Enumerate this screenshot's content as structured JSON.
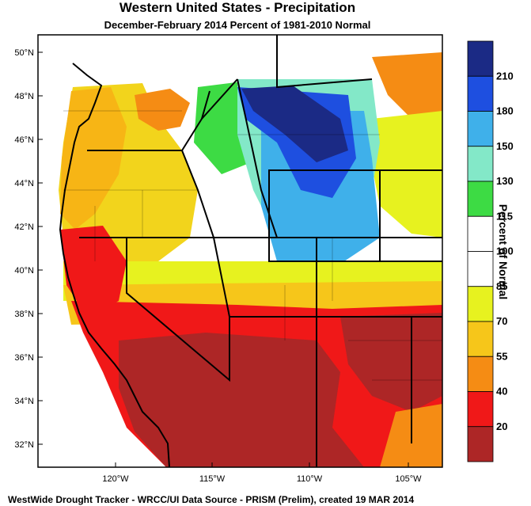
{
  "header": {
    "title": "Western United States - Precipitation",
    "subtitle": "December-February 2014  Percent of 1981-2010 Normal"
  },
  "footer": {
    "credit": "WestWide Drought Tracker - WRCC/UI  Data Source - PRISM (Prelim), created 19 MAR 2014"
  },
  "map": {
    "lat_labels": [
      "50°N",
      "48°N",
      "46°N",
      "44°N",
      "42°N",
      "40°N",
      "38°N",
      "36°N",
      "34°N",
      "32°N"
    ],
    "lon_labels": [
      "120°W",
      "115°W",
      "110°W",
      "105°W"
    ],
    "colors": {
      "ocean": "#ffffff",
      "coast": "#000000"
    }
  },
  "legend": {
    "title": "Percent of Normal",
    "labels": [
      "210",
      "180",
      "150",
      "130",
      "115",
      "100",
      "85",
      "70",
      "55",
      "40",
      "20"
    ],
    "colors": [
      "#1b2a85",
      "#1e4fe0",
      "#3fb0ea",
      "#83e8c8",
      "#3ddb44",
      "#ffffff",
      "#ffffff",
      "#e7f21f",
      "#f6c61a",
      "#f58c14",
      "#f01818",
      "#ad2626"
    ]
  }
}
